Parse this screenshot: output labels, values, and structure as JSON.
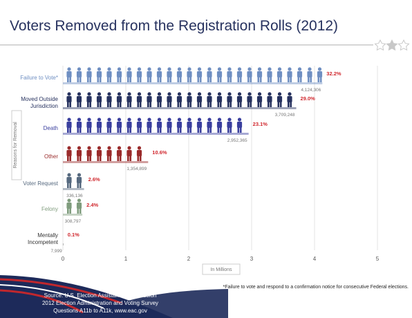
{
  "chart_data": {
    "type": "pictograph-bar",
    "title": "Voters Removed from the Registration Rolls (2012)",
    "categories": [
      "Failure to Vote*",
      "Moved Outside Jurisdiction",
      "Death",
      "Other",
      "Voter Request",
      "Felony",
      "Mentally Incompetent"
    ],
    "values": [
      4.124306,
      3.709248,
      2.952365,
      1.354899,
      0.336136,
      0.308797,
      0.007999
    ],
    "value_labels": [
      "4,124,306",
      "3,709,248",
      "2,952,365",
      "1,354,899",
      "336,136",
      "308,797",
      "7,999"
    ],
    "share_labels": [
      "32.2%",
      "29.0%",
      "23.1%",
      "10.6%",
      "2.6%",
      "2.4%",
      "0.1%"
    ],
    "colors": [
      "#6f8fc2",
      "#27325f",
      "#3a3f9e",
      "#9a2b2b",
      "#56697f",
      "#7f9c7d",
      "#333333"
    ],
    "xlim": [
      0,
      5
    ],
    "xticks": [
      0,
      1,
      2,
      3,
      4,
      5
    ],
    "xlabel": "In Millions",
    "ylabel": "Reasons for Removal",
    "grid": true,
    "footnote": "*Failure to vote and respond to a confirmation notice for consecutive Federal elections.",
    "source": [
      "Source: U.S. Election Assistance Commission",
      "2012 Election Administration and Voting Survey",
      "Questions A11b to A11k, www.eac.gov"
    ]
  }
}
